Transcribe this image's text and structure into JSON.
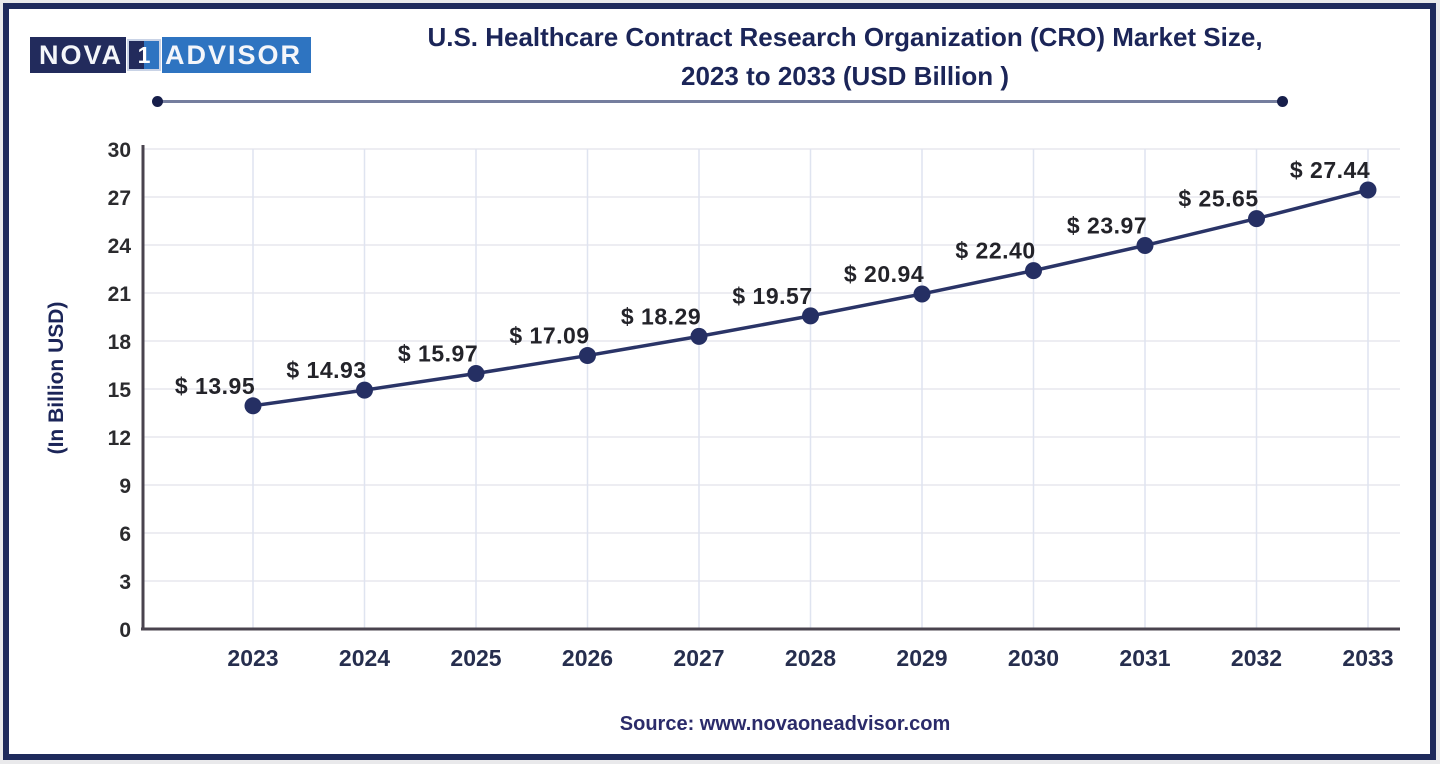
{
  "logo": {
    "part1": "NOVA",
    "part2": "1",
    "part3": "ADVISOR"
  },
  "title": {
    "line1": "U.S. Healthcare Contract Research Organization (CRO) Market Size,",
    "line2": "2023 to 2033 (USD  Billion )"
  },
  "chart_data": {
    "type": "line",
    "title": "U.S. Healthcare Contract Research Organization (CRO) Market Size, 2023 to 2033 (USD Billion)",
    "categories": [
      "2023",
      "2024",
      "2025",
      "2026",
      "2027",
      "2028",
      "2029",
      "2030",
      "2031",
      "2032",
      "2033"
    ],
    "values": [
      13.95,
      14.93,
      15.97,
      17.09,
      18.29,
      19.57,
      20.94,
      22.4,
      23.97,
      25.65,
      27.44
    ],
    "point_labels": [
      "$ 13.95",
      "$ 14.93",
      "$ 15.97",
      "$ 17.09",
      "$ 18.29",
      "$ 19.57",
      "$ 20.94",
      "$ 22.40",
      "$ 23.97",
      "$ 25.65",
      "$ 27.44"
    ],
    "xlabel": "",
    "ylabel": "(In Billion USD)",
    "ylim": [
      0,
      30
    ],
    "ytick_step": 3,
    "yticks": [
      0,
      3,
      6,
      9,
      12,
      15,
      18,
      21,
      24,
      27,
      30
    ],
    "grid": true,
    "legend": "none"
  },
  "source": {
    "text": "Source: www.novaoneadvisor.com"
  },
  "colors": {
    "line": "#2a3467",
    "point": "#252f63",
    "data_label": "#232329",
    "y_tick": "#2b2b2e",
    "x_tick": "#262e4e",
    "grid_h": "#e7e7ee",
    "grid_v": "#dfe4f0",
    "axis": "#49434e",
    "title_navy": "#1b2558",
    "frame_border": "#1e2a5c",
    "logo_navy": "#222b5c",
    "logo_blue": "#2e74c1"
  }
}
